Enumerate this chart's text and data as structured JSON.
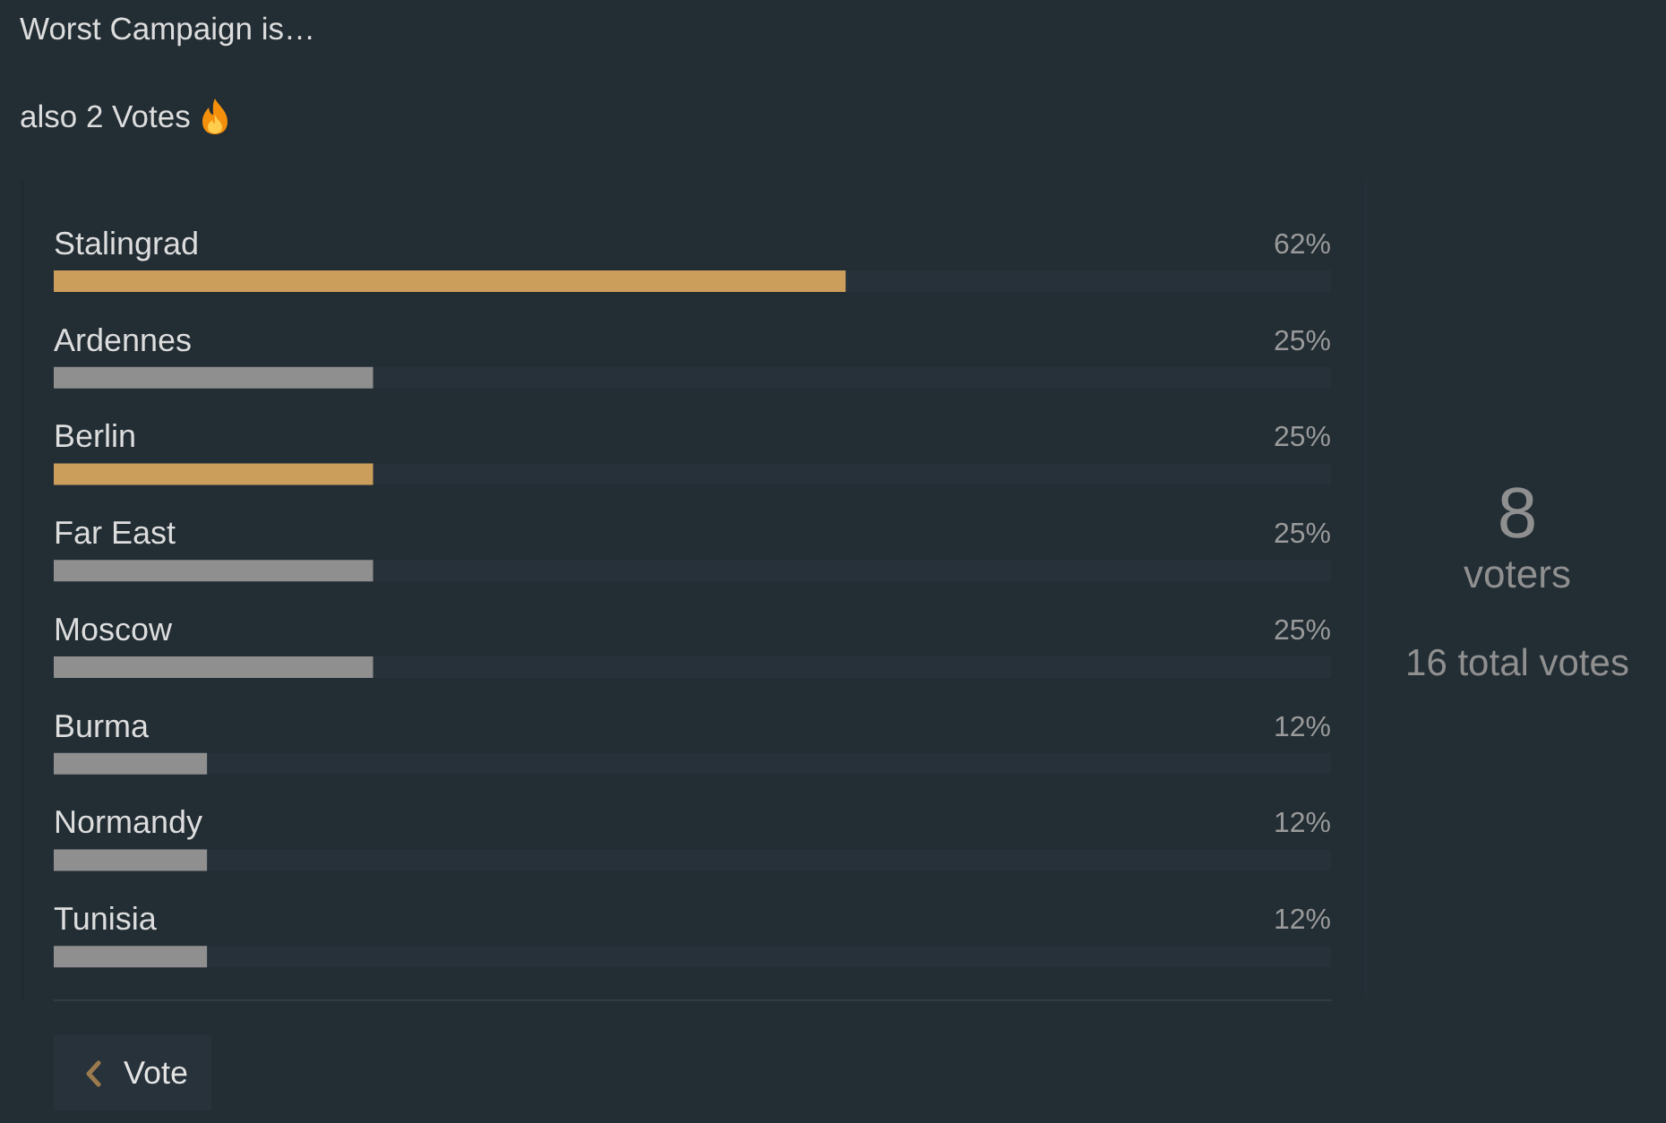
{
  "chart_data": {
    "type": "bar",
    "orientation": "horizontal",
    "title": "Worst Campaign is…",
    "subtitle": "also 2 Votes",
    "categories": [
      "Stalingrad",
      "Ardennes",
      "Berlin",
      "Far East",
      "Moscow",
      "Burma",
      "Normandy",
      "Tunisia"
    ],
    "values": [
      62,
      25,
      25,
      25,
      25,
      12,
      12,
      12
    ],
    "colors": [
      "#cc9e5b",
      "#8f8f8f",
      "#cc9e5b",
      "#8f8f8f",
      "#8f8f8f",
      "#8f8f8f",
      "#8f8f8f",
      "#8f8f8f"
    ],
    "value_labels": [
      "62%",
      "25%",
      "25%",
      "25%",
      "25%",
      "12%",
      "12%",
      "12%"
    ],
    "xlim": [
      0,
      100
    ],
    "tick_labels": "y",
    "annotations": [
      "8",
      "voters",
      "16 total votes",
      "Vote"
    ]
  }
}
